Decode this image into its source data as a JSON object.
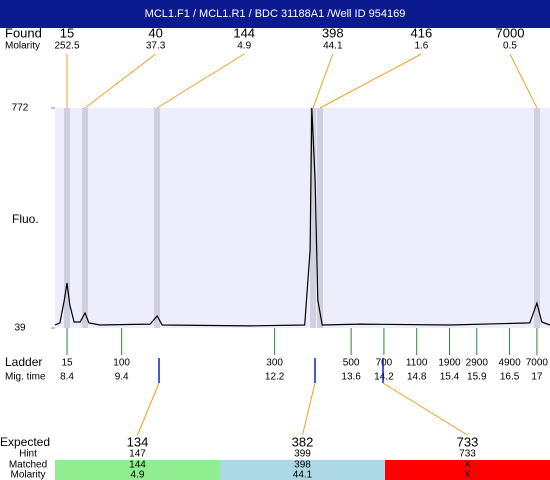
{
  "header": {
    "title": "MCL1.F1 / MCL1.R1  / BDC 31188A1  /Well ID 954169"
  },
  "found": {
    "label": "Found",
    "molarity_label": "Molarity",
    "sizes": [
      15,
      40,
      144,
      398,
      416,
      7000
    ],
    "molarity": [
      252.5,
      37.3,
      4.9,
      44.1,
      1.6,
      0.5
    ]
  },
  "chart_data": {
    "type": "line",
    "y_label": "Fluo.",
    "color": "#000000",
    "x": [
      8.18,
      8.27,
      8.35,
      8.4,
      8.45,
      8.53,
      8.64,
      8.73,
      8.8,
      9.0,
      9.92,
      10.05,
      10.14,
      11.75,
      12.75,
      12.85,
      12.88,
      12.94,
      12.99,
      13.07,
      13.77,
      15.41,
      16.87,
      17.0,
      17.09,
      17.24
    ],
    "values": [
      49,
      56,
      132,
      189,
      116,
      59,
      59,
      89,
      56,
      49,
      52,
      79,
      49,
      46,
      49,
      299,
      772,
      532,
      132,
      49,
      52,
      49,
      56,
      122,
      59,
      49
    ],
    "xlim": [
      8.18,
      17.24
    ],
    "ylim": [
      39,
      772
    ],
    "yticks": [
      39,
      772
    ]
  },
  "ladder": {
    "label": "Ladder",
    "time_label": "Mig. time",
    "sizes": [
      15,
      100,
      300,
      500,
      700,
      1100,
      1900,
      2900,
      4900,
      7000
    ],
    "times": [
      8.4,
      9.4,
      12.2,
      13.6,
      14.2,
      14.8,
      15.4,
      15.9,
      16.5,
      17
    ]
  },
  "expected": {
    "label": "Expected",
    "hint_label": "Hint",
    "matched_label": "Matched",
    "molarity_label": "Molarity",
    "sizes": [
      134,
      382,
      733
    ],
    "hint": [
      147,
      399,
      733
    ],
    "matched": [
      144,
      398,
      "X"
    ],
    "molarity": [
      4.9,
      44.1,
      "X"
    ],
    "colors": [
      "#90ee90",
      "#add8e6",
      "#ff0000"
    ]
  }
}
